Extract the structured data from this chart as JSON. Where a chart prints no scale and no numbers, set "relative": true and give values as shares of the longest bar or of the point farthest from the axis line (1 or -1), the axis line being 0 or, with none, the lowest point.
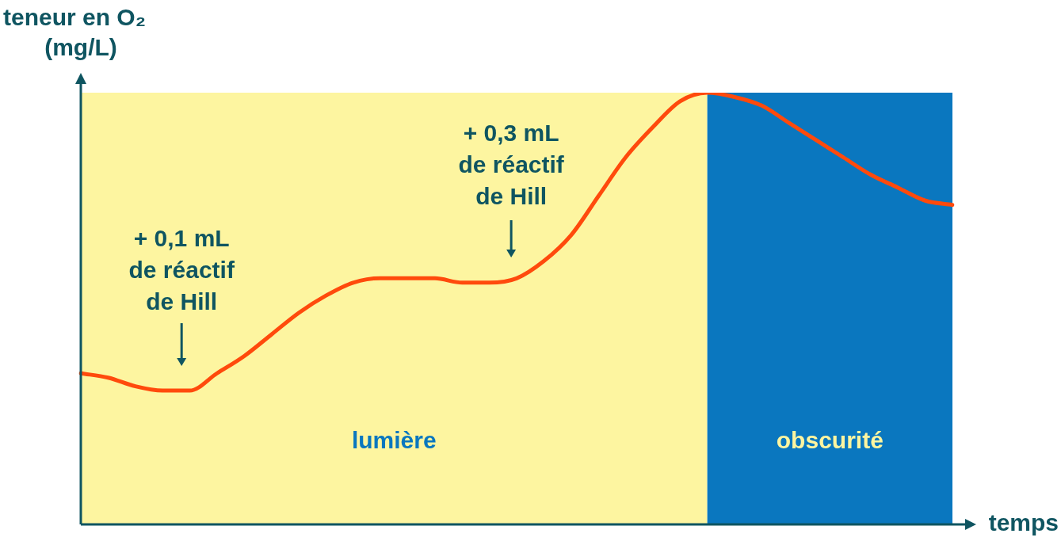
{
  "chart_data": {
    "type": "line",
    "relative": true,
    "xlabel": "temps",
    "ylabel": "teneur en O₂\n(mg/L)",
    "categories": [
      null,
      null,
      null,
      null,
      null,
      null,
      null,
      null,
      null,
      null,
      null,
      null,
      null,
      null,
      null,
      null,
      null,
      null,
      null,
      null,
      null,
      null,
      null,
      null,
      null,
      null,
      null,
      null,
      null,
      null,
      null,
      null,
      null
    ],
    "series": [
      {
        "color": "#ff4a0c",
        "values": [
          0.35,
          0.34,
          0.32,
          0.31,
          0.31,
          0.35,
          0.39,
          0.44,
          0.49,
          0.53,
          0.56,
          0.57,
          0.57,
          0.57,
          0.56,
          0.56,
          0.57,
          0.61,
          0.67,
          0.76,
          0.85,
          0.92,
          0.98,
          1,
          0.99,
          0.97,
          0.93,
          0.89,
          0.85,
          0.81,
          0.78,
          0.75,
          0.74
        ]
      }
    ],
    "annotations": [
      "+ 0,1 mL\nde réactif\nde Hill",
      "+ 0,3 mL\nde réactif\nde Hill",
      "lumière",
      "obscurité"
    ],
    "marker": "none",
    "line_style": "solid",
    "legend": false
  }
}
